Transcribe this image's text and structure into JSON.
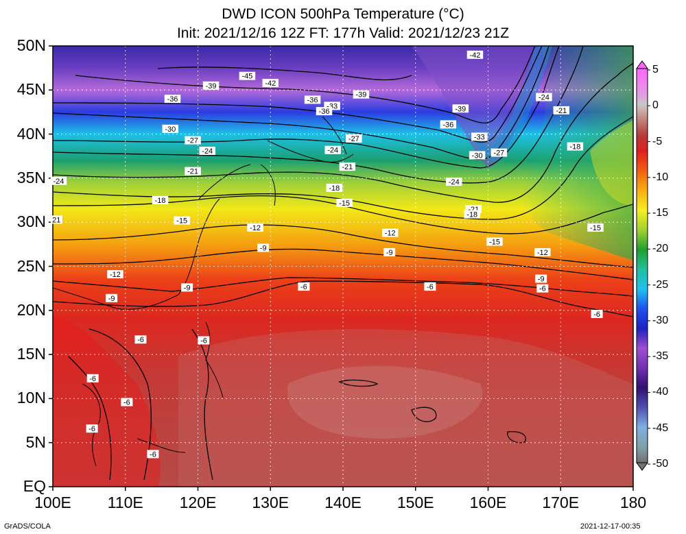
{
  "title_line1": "DWD ICON 500hPa Temperature (°C)",
  "title_line2": "Init: 2021/12/16 12Z  FT: 177h  Valid: 2021/12/23 21Z",
  "credit_left": "GrADS/COLA",
  "credit_right": "2021-12-17-00:35",
  "map": {
    "lon_range": [
      100,
      180
    ],
    "lat_range": [
      0,
      50
    ],
    "lon_labels": [
      "100E",
      "110E",
      "120E",
      "130E",
      "140E",
      "150E",
      "160E",
      "170E",
      "180"
    ],
    "lat_labels": [
      "50N",
      "45N",
      "40N",
      "35N",
      "30N",
      "25N",
      "20N",
      "15N",
      "10N",
      "5N",
      "EQ"
    ],
    "grid": true
  },
  "colorbar": {
    "labels": [
      "5",
      "0",
      "-5",
      "-10",
      "-15",
      "-20",
      "-25",
      "-30",
      "-35",
      "-40",
      "-45",
      "-50"
    ],
    "values": [
      5,
      0,
      -5,
      -10,
      -15,
      -20,
      -25,
      -30,
      -35,
      -40,
      -45,
      -50
    ]
  },
  "contour_labels": [
    {
      "text": "-42",
      "lon": 158.2,
      "lat": 49.0
    },
    {
      "text": "-45",
      "lon": 126.8,
      "lat": 46.6
    },
    {
      "text": "-42",
      "lon": 130.0,
      "lat": 45.8
    },
    {
      "text": "-39",
      "lon": 121.8,
      "lat": 45.5
    },
    {
      "text": "-39",
      "lon": 142.5,
      "lat": 44.5
    },
    {
      "text": "-36",
      "lon": 116.5,
      "lat": 44.0
    },
    {
      "text": "-36",
      "lon": 135.8,
      "lat": 43.9
    },
    {
      "text": "-33",
      "lon": 138.5,
      "lat": 43.2
    },
    {
      "text": "-36",
      "lon": 137.4,
      "lat": 42.6
    },
    {
      "text": "-39",
      "lon": 156.2,
      "lat": 42.9
    },
    {
      "text": "-24",
      "lon": 167.7,
      "lat": 44.2
    },
    {
      "text": "-21",
      "lon": 170.1,
      "lat": 42.7
    },
    {
      "text": "-36",
      "lon": 154.5,
      "lat": 41.1
    },
    {
      "text": "-30",
      "lon": 116.2,
      "lat": 40.6
    },
    {
      "text": "-33",
      "lon": 158.8,
      "lat": 39.7
    },
    {
      "text": "-27",
      "lon": 119.3,
      "lat": 39.3
    },
    {
      "text": "-27",
      "lon": 141.5,
      "lat": 39.5
    },
    {
      "text": "-24",
      "lon": 121.3,
      "lat": 38.1
    },
    {
      "text": "-24",
      "lon": 138.6,
      "lat": 38.2
    },
    {
      "text": "-18",
      "lon": 172.0,
      "lat": 38.6
    },
    {
      "text": "-30",
      "lon": 158.5,
      "lat": 37.6
    },
    {
      "text": "-27",
      "lon": 161.5,
      "lat": 37.9
    },
    {
      "text": "-21",
      "lon": 119.3,
      "lat": 35.8
    },
    {
      "text": "-21",
      "lon": 140.6,
      "lat": 36.3
    },
    {
      "text": "-24",
      "lon": 100.8,
      "lat": 34.7
    },
    {
      "text": "-24",
      "lon": 155.3,
      "lat": 34.6
    },
    {
      "text": "-18",
      "lon": 114.8,
      "lat": 32.5
    },
    {
      "text": "-18",
      "lon": 138.8,
      "lat": 33.9
    },
    {
      "text": "-15",
      "lon": 140.2,
      "lat": 32.2
    },
    {
      "text": "-21",
      "lon": 158.0,
      "lat": 31.5
    },
    {
      "text": "-18",
      "lon": 157.8,
      "lat": 30.9
    },
    {
      "text": "-15",
      "lon": 117.8,
      "lat": 30.2
    },
    {
      "text": "-15",
      "lon": 174.8,
      "lat": 29.4
    },
    {
      "text": "21",
      "lon": 100.5,
      "lat": 30.3
    },
    {
      "text": "-12",
      "lon": 127.9,
      "lat": 29.4
    },
    {
      "text": "-12",
      "lon": 146.5,
      "lat": 28.8
    },
    {
      "text": "-15",
      "lon": 160.9,
      "lat": 27.8
    },
    {
      "text": "-9",
      "lon": 129.0,
      "lat": 27.1
    },
    {
      "text": "-9",
      "lon": 146.4,
      "lat": 26.6
    },
    {
      "text": "-12",
      "lon": 167.5,
      "lat": 26.6
    },
    {
      "text": "-12",
      "lon": 108.6,
      "lat": 24.1
    },
    {
      "text": "-9",
      "lon": 167.3,
      "lat": 23.6
    },
    {
      "text": "-9",
      "lon": 118.5,
      "lat": 22.6
    },
    {
      "text": "-6",
      "lon": 134.6,
      "lat": 22.7
    },
    {
      "text": "-6",
      "lon": 152.0,
      "lat": 22.7
    },
    {
      "text": "-6",
      "lon": 167.5,
      "lat": 22.5
    },
    {
      "text": "-9",
      "lon": 108.1,
      "lat": 21.4
    },
    {
      "text": "-6",
      "lon": 175.0,
      "lat": 19.6
    },
    {
      "text": "-6",
      "lon": 112.1,
      "lat": 16.7
    },
    {
      "text": "-6",
      "lon": 120.8,
      "lat": 16.6
    },
    {
      "text": "-6",
      "lon": 105.5,
      "lat": 12.3
    },
    {
      "text": "-6",
      "lon": 110.2,
      "lat": 9.6
    },
    {
      "text": "-6",
      "lon": 105.4,
      "lat": 6.6
    },
    {
      "text": "-6",
      "lon": 113.8,
      "lat": 3.7
    }
  ]
}
